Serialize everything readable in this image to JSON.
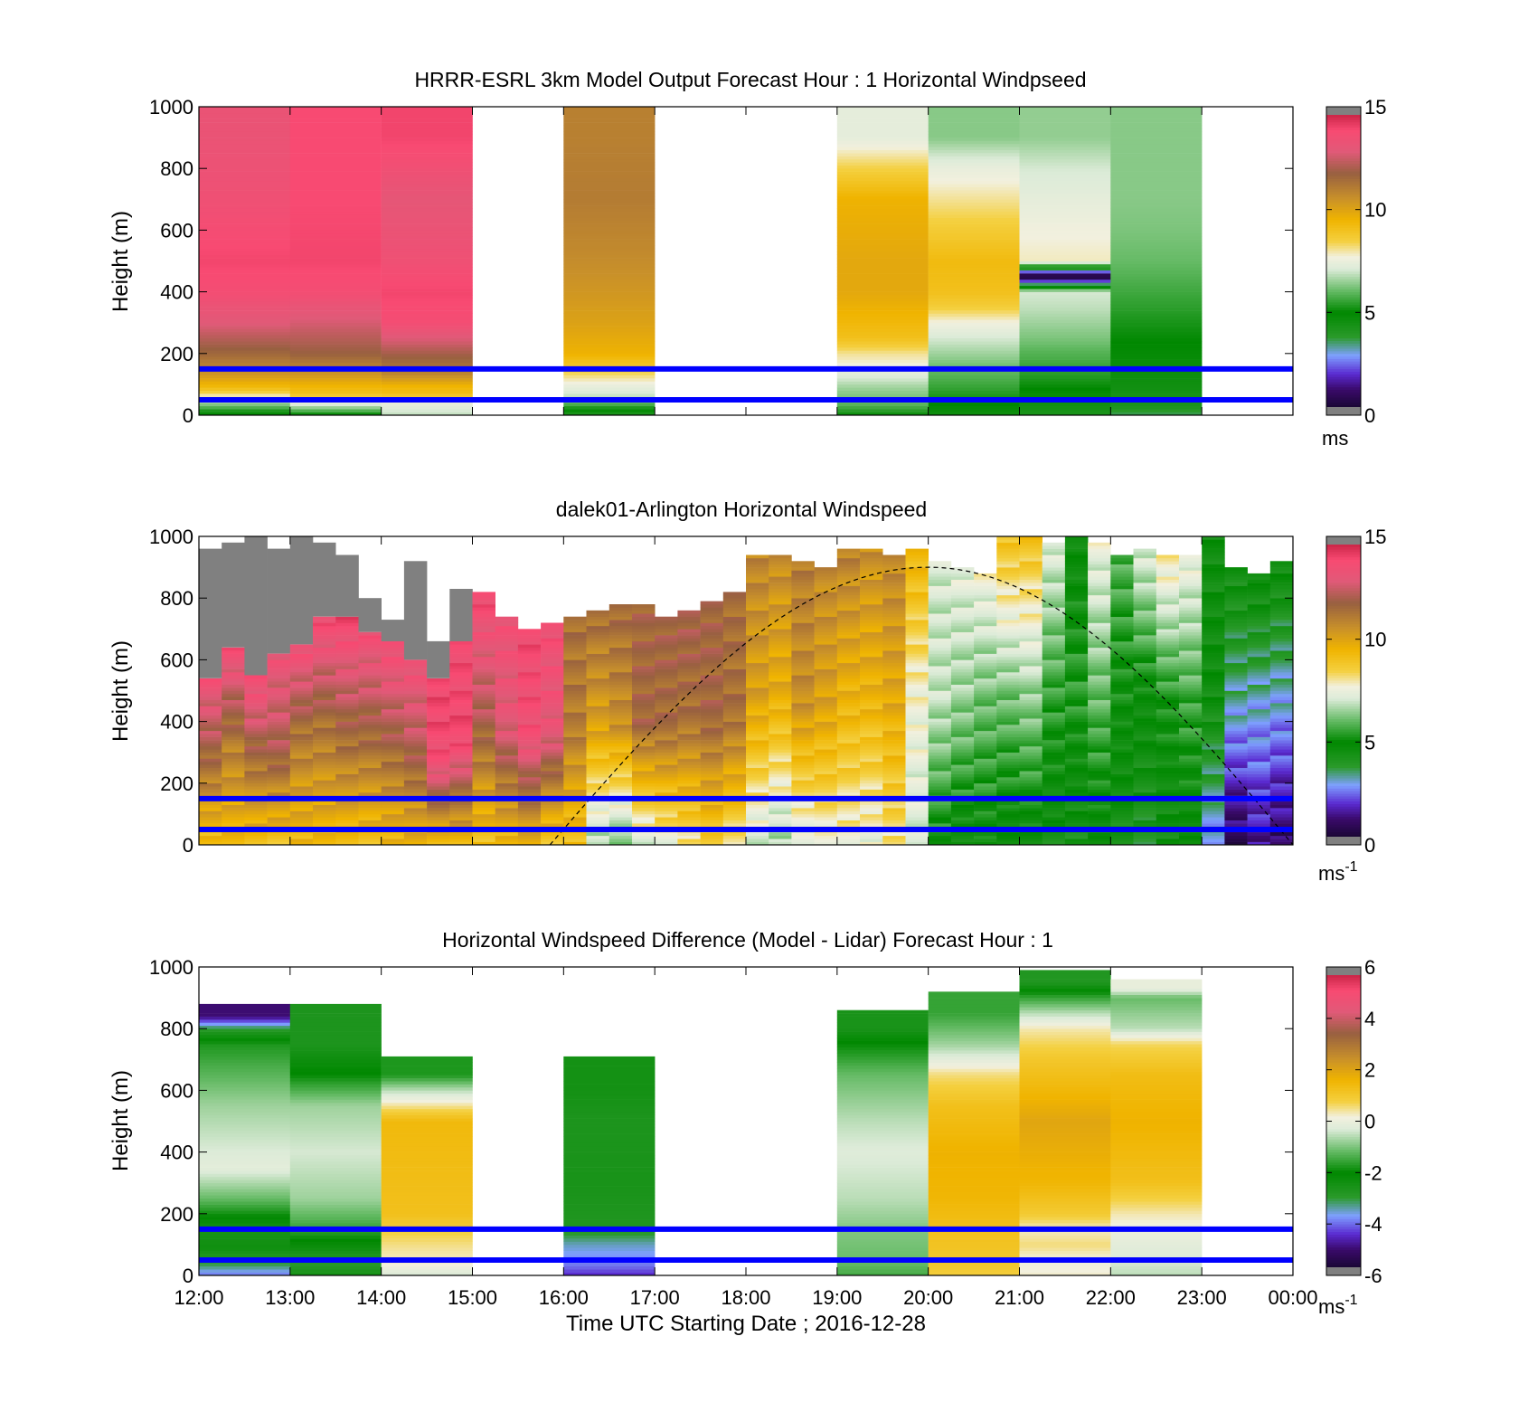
{
  "figure": {
    "xlabel": "Time UTC  Starting Date ; 2016-12-28",
    "x_tick_labels": [
      "12:00",
      "13:00",
      "14:00",
      "15:00",
      "16:00",
      "17:00",
      "18:00",
      "19:00",
      "20:00",
      "21:00",
      "22:00",
      "23:00",
      "00:00"
    ]
  },
  "colors": {
    "reference_lines": "#0000ff",
    "no_data": "#808080"
  },
  "chart_data": [
    {
      "id": "model",
      "type": "heatmap",
      "title": "HRRR-ESRL 3km Model Output   Forecast Hour : 1 Horizontal Windpseed",
      "ylabel": "Height (m)",
      "ylim": [
        0,
        1000
      ],
      "y_ticks": [
        0,
        200,
        400,
        600,
        800,
        1000
      ],
      "x_range_hours": [
        12,
        24
      ],
      "reference_lines_m": [
        150,
        50
      ],
      "colorbar": {
        "range": [
          0,
          15
        ],
        "ticks": [
          0,
          5,
          10,
          15
        ],
        "unit_label": "ms",
        "unit_superscript": ""
      },
      "hourly_profiles": [
        {
          "start_hour": 12,
          "max_height_m": 1000,
          "levels_m": [
            0,
            40,
            70,
            90,
            140,
            200,
            300,
            400,
            500,
            700,
            900
          ],
          "values": [
            4.5,
            6.5,
            8.2,
            9.2,
            10.5,
            11.5,
            12.8,
            13.6,
            13.9,
            13.4,
            13.2
          ]
        },
        {
          "start_hour": 13,
          "max_height_m": 1000,
          "levels_m": [
            0,
            40,
            70,
            90,
            140,
            200,
            300,
            400,
            500,
            700,
            900
          ],
          "values": [
            4.8,
            7.4,
            9.0,
            9.3,
            10.5,
            11.7,
            12.6,
            13.6,
            13.9,
            13.8,
            13.8
          ]
        },
        {
          "start_hour": 14,
          "max_height_m": 1000,
          "levels_m": [
            0,
            40,
            70,
            90,
            140,
            200,
            300,
            400,
            500,
            700,
            900
          ],
          "values": [
            6.8,
            7.4,
            9.1,
            9.3,
            10.9,
            11.9,
            13.6,
            13.9,
            13.4,
            13.0,
            13.9
          ]
        },
        {
          "start_hour": 16,
          "max_height_m": 1000,
          "levels_m": [
            0,
            30,
            60,
            100,
            150,
            200,
            300,
            400,
            500,
            700,
            900
          ],
          "values": [
            4.0,
            5.5,
            6.8,
            7.5,
            8.6,
            9.5,
            10.0,
            10.3,
            10.6,
            11.0,
            10.9
          ]
        },
        {
          "start_hour": 19,
          "max_height_m": 1000,
          "levels_m": [
            0,
            40,
            90,
            150,
            200,
            250,
            300,
            400,
            500,
            700,
            900
          ],
          "values": [
            5.0,
            6.0,
            6.5,
            7.5,
            8.0,
            9.0,
            9.3,
            9.8,
            9.8,
            9.5,
            7.3
          ]
        },
        {
          "start_hour": 20,
          "max_height_m": 1000,
          "levels_m": [
            0,
            40,
            90,
            150,
            200,
            250,
            300,
            350,
            400,
            500,
            700,
            800,
            900
          ],
          "values": [
            4.5,
            5.0,
            5.5,
            6.0,
            6.5,
            7.0,
            7.6,
            8.5,
            9.0,
            9.2,
            8.0,
            7.4,
            6.3
          ]
        },
        {
          "start_hour": 21,
          "max_height_m": 1000,
          "levels_m": [
            0,
            40,
            90,
            150,
            200,
            250,
            300,
            350,
            400,
            450,
            500,
            600,
            800,
            900
          ],
          "values": [
            4.2,
            4.5,
            5.0,
            5.5,
            5.8,
            6.2,
            6.5,
            6.8,
            7.0,
            0,
            7.8,
            7.6,
            7.0,
            6.4
          ]
        },
        {
          "start_hour": 22,
          "max_height_m": 1000,
          "levels_m": [
            0,
            30,
            60,
            100,
            150,
            200,
            250,
            300,
            350,
            400,
            450,
            500,
            600,
            700,
            900
          ],
          "values": [
            3.5,
            4.2,
            4.3,
            4.5,
            4.6,
            4.8,
            5.0,
            5.2,
            5.4,
            5.6,
            5.8,
            6.0,
            6.2,
            6.3,
            6.3
          ]
        }
      ]
    },
    {
      "id": "lidar",
      "type": "heatmap",
      "title": "dalek01-Arlington  Horizontal Windspeed",
      "ylabel": "Height (m)",
      "ylim": [
        0,
        1000
      ],
      "y_ticks": [
        0,
        200,
        400,
        600,
        800,
        1000
      ],
      "x_range_hours": [
        12,
        24
      ],
      "reference_lines_m": [
        150,
        50
      ],
      "colorbar": {
        "range": [
          0,
          15
        ],
        "ticks": [
          0,
          5,
          10,
          15
        ],
        "unit_label": "ms",
        "unit_superscript": "-1"
      },
      "column_interval_hours": 0.25,
      "columns": [
        {
          "t": 12.0,
          "top_m": 540,
          "nodata_top_m": 960,
          "v_surface": 9.0,
          "v_mid": 11.5,
          "v_top": 13.4
        },
        {
          "t": 12.25,
          "top_m": 640,
          "nodata_top_m": 980,
          "v_surface": 9.2,
          "v_mid": 11.0,
          "v_top": 13.6
        },
        {
          "t": 12.5,
          "top_m": 550,
          "nodata_top_m": 1000,
          "v_surface": 9.1,
          "v_mid": 11.4,
          "v_top": 13.8
        },
        {
          "t": 12.75,
          "top_m": 620,
          "nodata_top_m": 960,
          "v_surface": 9.0,
          "v_mid": 12.0,
          "v_top": 13.2
        },
        {
          "t": 13.0,
          "top_m": 650,
          "nodata_top_m": 1000,
          "v_surface": 9.3,
          "v_mid": 11.0,
          "v_top": 13.6
        },
        {
          "t": 13.25,
          "top_m": 740,
          "nodata_top_m": 980,
          "v_surface": 9.2,
          "v_mid": 11.2,
          "v_top": 13.8
        },
        {
          "t": 13.5,
          "top_m": 740,
          "nodata_top_m": 940,
          "v_surface": 9.2,
          "v_mid": 11.6,
          "v_top": 13.9
        },
        {
          "t": 13.75,
          "top_m": 690,
          "nodata_top_m": 800,
          "v_surface": 9.1,
          "v_mid": 11.5,
          "v_top": 13.5
        },
        {
          "t": 14.0,
          "top_m": 660,
          "nodata_top_m": 730,
          "v_surface": 9.3,
          "v_mid": 11.7,
          "v_top": 13.7
        },
        {
          "t": 14.25,
          "top_m": 600,
          "nodata_top_m": 920,
          "v_surface": 9.4,
          "v_mid": 12.0,
          "v_top": 13.4
        },
        {
          "t": 14.5,
          "top_m": 540,
          "nodata_top_m": 660,
          "v_surface": 9.2,
          "v_mid": 13.6,
          "v_top": 13.9
        },
        {
          "t": 14.75,
          "top_m": 660,
          "nodata_top_m": 830,
          "v_surface": 9.4,
          "v_mid": 13.8,
          "v_top": 13.6
        },
        {
          "t": 15.0,
          "top_m": 820,
          "nodata_top_m": 820,
          "v_surface": 9.0,
          "v_mid": 12.0,
          "v_top": 13.8
        },
        {
          "t": 15.25,
          "top_m": 740,
          "nodata_top_m": 740,
          "v_surface": 9.2,
          "v_mid": 12.8,
          "v_top": 13.4
        },
        {
          "t": 15.5,
          "top_m": 700,
          "nodata_top_m": 700,
          "v_surface": 9.6,
          "v_mid": 13.5,
          "v_top": 13.7
        },
        {
          "t": 15.75,
          "top_m": 720,
          "nodata_top_m": 720,
          "v_surface": 8.8,
          "v_mid": 13.0,
          "v_top": 13.5
        },
        {
          "t": 16.0,
          "top_m": 740,
          "nodata_top_m": 740,
          "v_surface": 9.0,
          "v_mid": 11.0,
          "v_top": 11.3
        },
        {
          "t": 16.25,
          "top_m": 760,
          "nodata_top_m": 760,
          "v_surface": 6.5,
          "v_mid": 10.0,
          "v_top": 11.4
        },
        {
          "t": 16.5,
          "top_m": 780,
          "nodata_top_m": 780,
          "v_surface": 6.0,
          "v_mid": 10.5,
          "v_top": 11.5
        },
        {
          "t": 16.75,
          "top_m": 780,
          "nodata_top_m": 780,
          "v_surface": 7.0,
          "v_mid": 11.6,
          "v_top": 11.6
        },
        {
          "t": 17.0,
          "top_m": 740,
          "nodata_top_m": 740,
          "v_surface": 7.5,
          "v_mid": 11.4,
          "v_top": 11.8
        },
        {
          "t": 17.25,
          "top_m": 760,
          "nodata_top_m": 760,
          "v_surface": 8.0,
          "v_mid": 11.2,
          "v_top": 12.0
        },
        {
          "t": 17.5,
          "top_m": 790,
          "nodata_top_m": 790,
          "v_surface": 8.5,
          "v_mid": 11.6,
          "v_top": 11.7
        },
        {
          "t": 17.75,
          "top_m": 820,
          "nodata_top_m": 820,
          "v_surface": 8.0,
          "v_mid": 11.3,
          "v_top": 11.4
        },
        {
          "t": 18.0,
          "top_m": 940,
          "nodata_top_m": 940,
          "v_surface": 7.0,
          "v_mid": 10.0,
          "v_top": 10.8
        },
        {
          "t": 18.25,
          "top_m": 940,
          "nodata_top_m": 940,
          "v_surface": 6.5,
          "v_mid": 9.6,
          "v_top": 10.6
        },
        {
          "t": 18.5,
          "top_m": 920,
          "nodata_top_m": 920,
          "v_surface": 7.0,
          "v_mid": 10.5,
          "v_top": 11.0
        },
        {
          "t": 18.75,
          "top_m": 900,
          "nodata_top_m": 900,
          "v_surface": 7.5,
          "v_mid": 10.0,
          "v_top": 10.7
        },
        {
          "t": 19.0,
          "top_m": 960,
          "nodata_top_m": 960,
          "v_surface": 7.6,
          "v_mid": 9.5,
          "v_top": 10.9
        },
        {
          "t": 19.25,
          "top_m": 960,
          "nodata_top_m": 960,
          "v_surface": 7.4,
          "v_mid": 9.5,
          "v_top": 10.5
        },
        {
          "t": 19.5,
          "top_m": 940,
          "nodata_top_m": 940,
          "v_surface": 8.0,
          "v_mid": 9.8,
          "v_top": 10.8
        },
        {
          "t": 19.75,
          "top_m": 960,
          "nodata_top_m": 960,
          "v_surface": 7.0,
          "v_mid": 7.6,
          "v_top": 9.5
        },
        {
          "t": 20.0,
          "top_m": 920,
          "nodata_top_m": 920,
          "v_surface": 5.0,
          "v_mid": 6.8,
          "v_top": 7.0
        },
        {
          "t": 20.25,
          "top_m": 900,
          "nodata_top_m": 900,
          "v_surface": 4.6,
          "v_mid": 6.4,
          "v_top": 7.3
        },
        {
          "t": 20.5,
          "top_m": 880,
          "nodata_top_m": 880,
          "v_surface": 4.8,
          "v_mid": 6.0,
          "v_top": 7.6
        },
        {
          "t": 20.75,
          "top_m": 1000,
          "nodata_top_m": 1000,
          "v_surface": 4.5,
          "v_mid": 6.2,
          "v_top": 9.0
        },
        {
          "t": 21.0,
          "top_m": 1000,
          "nodata_top_m": 1000,
          "v_surface": 4.6,
          "v_mid": 6.5,
          "v_top": 9.0
        },
        {
          "t": 21.25,
          "top_m": 980,
          "nodata_top_m": 980,
          "v_surface": 4.4,
          "v_mid": 5.5,
          "v_top": 7.2
        },
        {
          "t": 21.5,
          "top_m": 1000,
          "nodata_top_m": 1000,
          "v_surface": 4.2,
          "v_mid": 5.4,
          "v_top": 4.6
        },
        {
          "t": 21.75,
          "top_m": 980,
          "nodata_top_m": 980,
          "v_surface": 4.5,
          "v_mid": 6.0,
          "v_top": 7.4
        },
        {
          "t": 22.0,
          "top_m": 940,
          "nodata_top_m": 940,
          "v_surface": 4.3,
          "v_mid": 5.0,
          "v_top": 5.8
        },
        {
          "t": 22.25,
          "top_m": 960,
          "nodata_top_m": 960,
          "v_surface": 4.0,
          "v_mid": 4.8,
          "v_top": 7.2
        },
        {
          "t": 22.5,
          "top_m": 940,
          "nodata_top_m": 940,
          "v_surface": 4.4,
          "v_mid": 5.2,
          "v_top": 8.0
        },
        {
          "t": 22.75,
          "top_m": 940,
          "nodata_top_m": 940,
          "v_surface": 4.5,
          "v_mid": 5.6,
          "v_top": 7.5
        },
        {
          "t": 23.0,
          "top_m": 1000,
          "nodata_top_m": 1000,
          "v_surface": 2.8,
          "v_mid": 4.6,
          "v_top": 4.5
        },
        {
          "t": 23.25,
          "top_m": 900,
          "nodata_top_m": 900,
          "v_surface": 0.8,
          "v_mid": 3.2,
          "v_top": 4.6
        },
        {
          "t": 23.5,
          "top_m": 880,
          "nodata_top_m": 880,
          "v_surface": 1.5,
          "v_mid": 3.0,
          "v_top": 4.8
        },
        {
          "t": 23.75,
          "top_m": 920,
          "nodata_top_m": 920,
          "v_surface": 1.0,
          "v_mid": 3.0,
          "v_top": 4.7
        }
      ],
      "dashed_curve": {
        "start_hour": 15.85,
        "peak_hour": 20.0,
        "end_hour": 24.0,
        "peak_height_m": 900
      }
    },
    {
      "id": "difference",
      "type": "heatmap",
      "title": "Horizontal Windspeed Difference (Model - Lidar) Forecast Hour : 1",
      "ylabel": "Height (m)",
      "ylim": [
        0,
        1000
      ],
      "y_ticks": [
        0,
        200,
        400,
        600,
        800,
        1000
      ],
      "x_range_hours": [
        12,
        24
      ],
      "reference_lines_m": [
        150,
        50
      ],
      "colorbar": {
        "range": [
          -6,
          6
        ],
        "ticks": [
          -6,
          -4,
          -2,
          0,
          2,
          4,
          6
        ],
        "unit_label": "ms",
        "unit_superscript": "-1"
      },
      "hourly_profiles": [
        {
          "start_hour": 12,
          "max_height_m": 880,
          "levels_m": [
            0,
            40,
            90,
            150,
            250,
            350,
            450,
            550,
            650,
            750,
            800,
            840
          ],
          "values": [
            -4.0,
            -3.0,
            -2.4,
            -2.6,
            -1.2,
            -0.2,
            -0.5,
            -0.8,
            -1.3,
            -1.8,
            -3.0,
            -5.0
          ]
        },
        {
          "start_hour": 13,
          "max_height_m": 880,
          "levels_m": [
            0,
            40,
            150,
            250,
            400,
            550,
            650,
            750
          ],
          "values": [
            -2.5,
            -3.0,
            -1.6,
            -0.8,
            -0.4,
            -0.8,
            -2.0,
            -2.7
          ]
        },
        {
          "start_hour": 14,
          "max_height_m": 710,
          "levels_m": [
            0,
            40,
            90,
            150,
            200,
            500,
            600,
            650
          ],
          "values": [
            -0.4,
            0.2,
            0.4,
            0.8,
            1.2,
            1.4,
            -0.6,
            -1.8
          ]
        },
        {
          "start_hour": 16,
          "max_height_m": 710,
          "levels_m": [
            0,
            30,
            60,
            100,
            150,
            300,
            500,
            600
          ],
          "values": [
            -4.5,
            -4.0,
            -3.8,
            -3.5,
            -2.8,
            -2.6,
            -2.7,
            -2.5
          ]
        },
        {
          "start_hour": 19,
          "max_height_m": 860,
          "levels_m": [
            0,
            40,
            150,
            250,
            400,
            500,
            650,
            750,
            800
          ],
          "values": [
            -1.5,
            -1.2,
            -1.0,
            -0.6,
            -0.3,
            -0.6,
            -1.2,
            -2.0,
            -2.6
          ]
        },
        {
          "start_hour": 20,
          "max_height_m": 920,
          "levels_m": [
            0,
            40,
            150,
            250,
            400,
            550,
            650,
            700,
            750,
            850
          ],
          "values": [
            0.8,
            1.0,
            1.2,
            1.5,
            1.6,
            1.2,
            0.5,
            -0.2,
            -0.8,
            -1.6
          ]
        },
        {
          "start_hour": 21,
          "max_height_m": 990,
          "levels_m": [
            0,
            40,
            100,
            150,
            200,
            300,
            500,
            700,
            800,
            860,
            920,
            950
          ],
          "values": [
            0.2,
            0.0,
            0.5,
            0.2,
            0.9,
            1.5,
            1.9,
            1.0,
            0.3,
            -0.8,
            -2.0,
            -2.8
          ]
        },
        {
          "start_hour": 22,
          "max_height_m": 960,
          "levels_m": [
            0,
            40,
            100,
            150,
            200,
            300,
            500,
            650,
            750,
            800,
            900,
            930
          ],
          "values": [
            -0.6,
            -0.4,
            -0.2,
            0.0,
            0.3,
            1.2,
            1.6,
            1.3,
            0.6,
            -0.6,
            -1.2,
            -0.1
          ]
        }
      ]
    }
  ]
}
